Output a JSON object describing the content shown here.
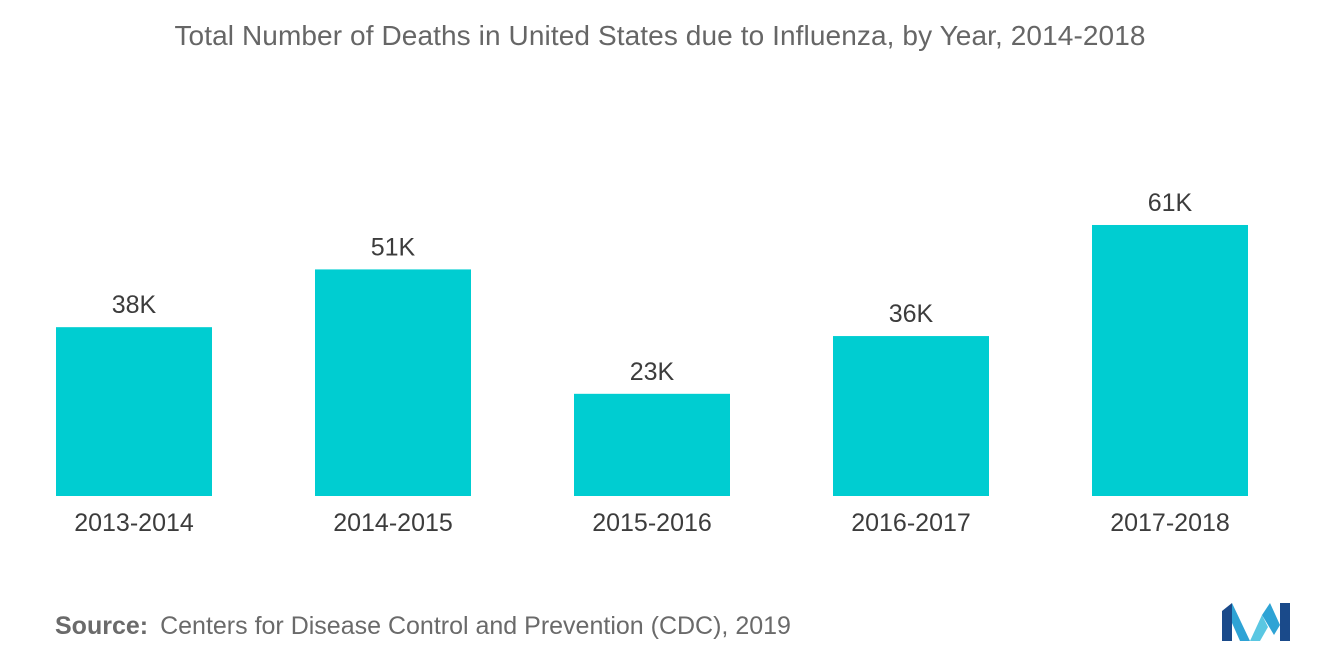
{
  "chart_data": {
    "type": "bar",
    "title": "Total Number of Deaths in United States due to Influenza, by Year, 2014-2018",
    "categories": [
      "2013-2014",
      "2014-2015",
      "2015-2016",
      "2016-2017",
      "2017-2018"
    ],
    "values": [
      38,
      51,
      23,
      36,
      61
    ],
    "data_labels": [
      "38K",
      "51K",
      "23K",
      "36K",
      "61K"
    ],
    "xlabel": "",
    "ylabel": "",
    "ylim": [
      0,
      70
    ],
    "grid": false,
    "bar_color": "#00cdd1"
  },
  "source": {
    "label": "Source:",
    "text": "Centers for Disease Control and Prevention (CDC), 2019"
  },
  "logo": {
    "icon": "mordor-intelligence-logo-icon",
    "colors": [
      "#1a4a8a",
      "#2ea3d5",
      "#5ac7e2"
    ]
  }
}
